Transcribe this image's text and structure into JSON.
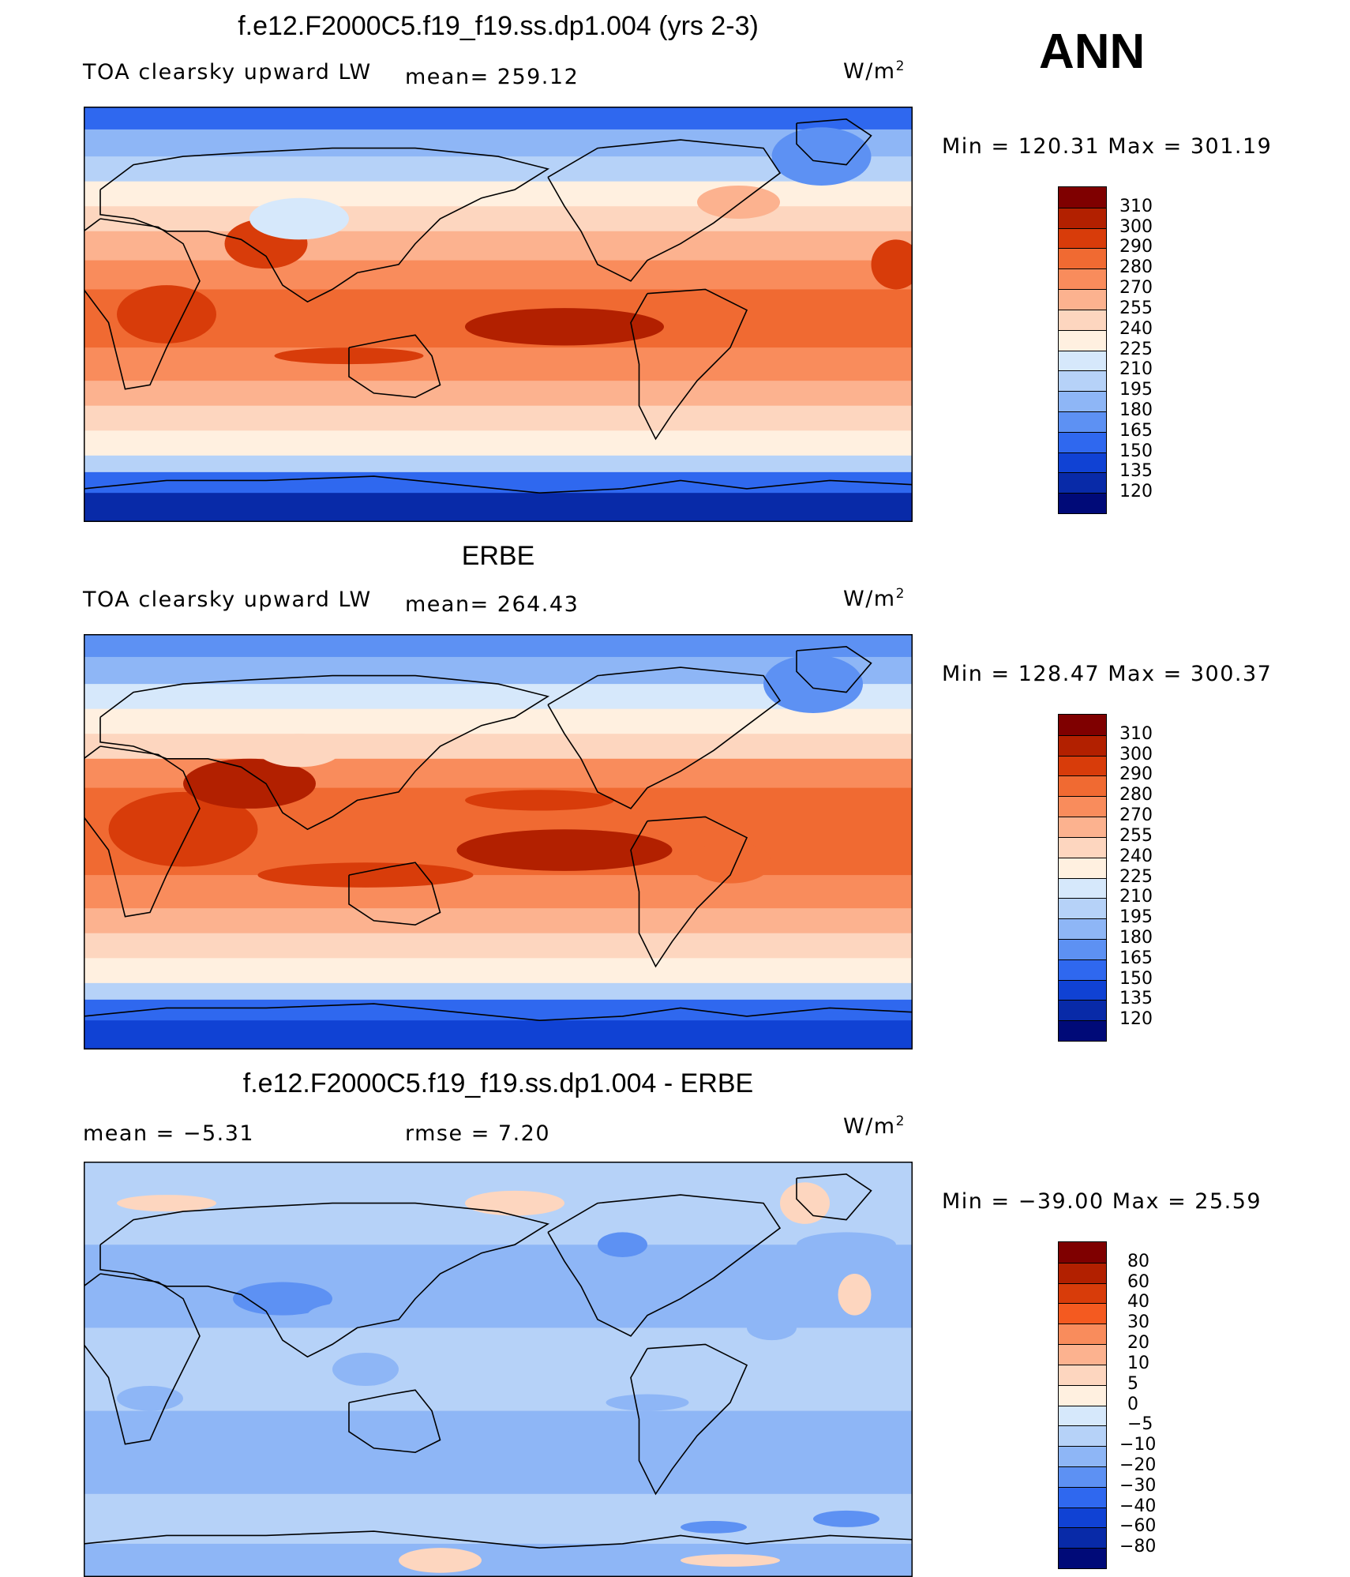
{
  "season": "ANN",
  "panels": [
    {
      "title": "f.e12.F2000C5.f19_f19.ss.dp1.004 (yrs 2-3)",
      "left_label": "TOA clearsky upward LW",
      "stat1": "mean=  259.12",
      "stat2": "",
      "units": "W/m",
      "units_sup": "2",
      "minmax": "Min  =  120.31  Max  =  301.19",
      "palette": "abs",
      "colorbar_labels": [
        "310",
        "300",
        "290",
        "280",
        "270",
        "255",
        "240",
        "225",
        "210",
        "195",
        "180",
        "165",
        "150",
        "135",
        "120"
      ]
    },
    {
      "title": "ERBE",
      "left_label": "TOA clearsky upward LW",
      "stat1": "mean=  264.43",
      "stat2": "",
      "units": "W/m",
      "units_sup": "2",
      "minmax": "Min  =  128.47  Max  =  300.37",
      "palette": "abs",
      "colorbar_labels": [
        "310",
        "300",
        "290",
        "280",
        "270",
        "255",
        "240",
        "225",
        "210",
        "195",
        "180",
        "165",
        "150",
        "135",
        "120"
      ]
    },
    {
      "title": "f.e12.F2000C5.f19_f19.ss.dp1.004 - ERBE",
      "left_label": "mean  =    −5.31",
      "stat1": "rmse  =     7.20",
      "stat2": "",
      "units": "W/m",
      "units_sup": "2",
      "minmax": "Min  =  −39.00  Max  =    25.59",
      "palette": "diff",
      "colorbar_labels": [
        "80",
        "60",
        "40",
        "30",
        "20",
        "10",
        "5",
        "0",
        "−5",
        "−10",
        "−20",
        "−30",
        "−40",
        "−60",
        "−80"
      ]
    }
  ],
  "palettes": {
    "abs": [
      "#7f0000",
      "#b22000",
      "#d83c0a",
      "#f06a32",
      "#f98c5c",
      "#fcb28f",
      "#fdd6bf",
      "#fff0e0",
      "#d6e8fb",
      "#b6d2f8",
      "#8eb6f6",
      "#5d91f3",
      "#2f68ef",
      "#1042d4",
      "#082aa8",
      "#000a78"
    ],
    "diff": [
      "#7f0000",
      "#b22000",
      "#d83c0a",
      "#f45a20",
      "#f98c5c",
      "#fcb28f",
      "#fdd6bf",
      "#fff0e0",
      "#d6e8fb",
      "#b6d2f8",
      "#8eb6f6",
      "#5d91f3",
      "#2f68ef",
      "#1042d4",
      "#082aa8",
      "#000a78"
    ]
  }
}
